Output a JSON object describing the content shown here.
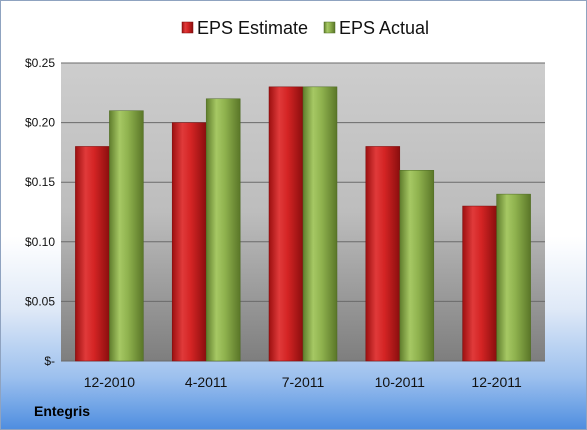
{
  "company": "Entegris",
  "colors": {
    "estimate": "#cc1f1f",
    "actual": "#8aad4a",
    "plot_bg_top": "#c9c9c9",
    "plot_bg_bottom": "#8a8a8a"
  },
  "chart_data": {
    "type": "bar",
    "title": "",
    "xlabel": "",
    "ylabel": "",
    "categories": [
      "12-2010",
      "4-2011",
      "7-2011",
      "10-2011",
      "12-2011"
    ],
    "series": [
      {
        "name": "EPS Estimate",
        "values": [
          0.18,
          0.2,
          0.23,
          0.18,
          0.13
        ]
      },
      {
        "name": "EPS Actual",
        "values": [
          0.21,
          0.22,
          0.23,
          0.16,
          0.14
        ]
      }
    ],
    "ylim": [
      0,
      0.25
    ],
    "y_ticks": [
      {
        "value": 0,
        "label": "$-"
      },
      {
        "value": 0.05,
        "label": "$0.05"
      },
      {
        "value": 0.1,
        "label": "$0.10"
      },
      {
        "value": 0.15,
        "label": "$0.15"
      },
      {
        "value": 0.2,
        "label": "$0.20"
      },
      {
        "value": 0.25,
        "label": "$0.25"
      }
    ],
    "grid": true,
    "legend": "top-center"
  }
}
